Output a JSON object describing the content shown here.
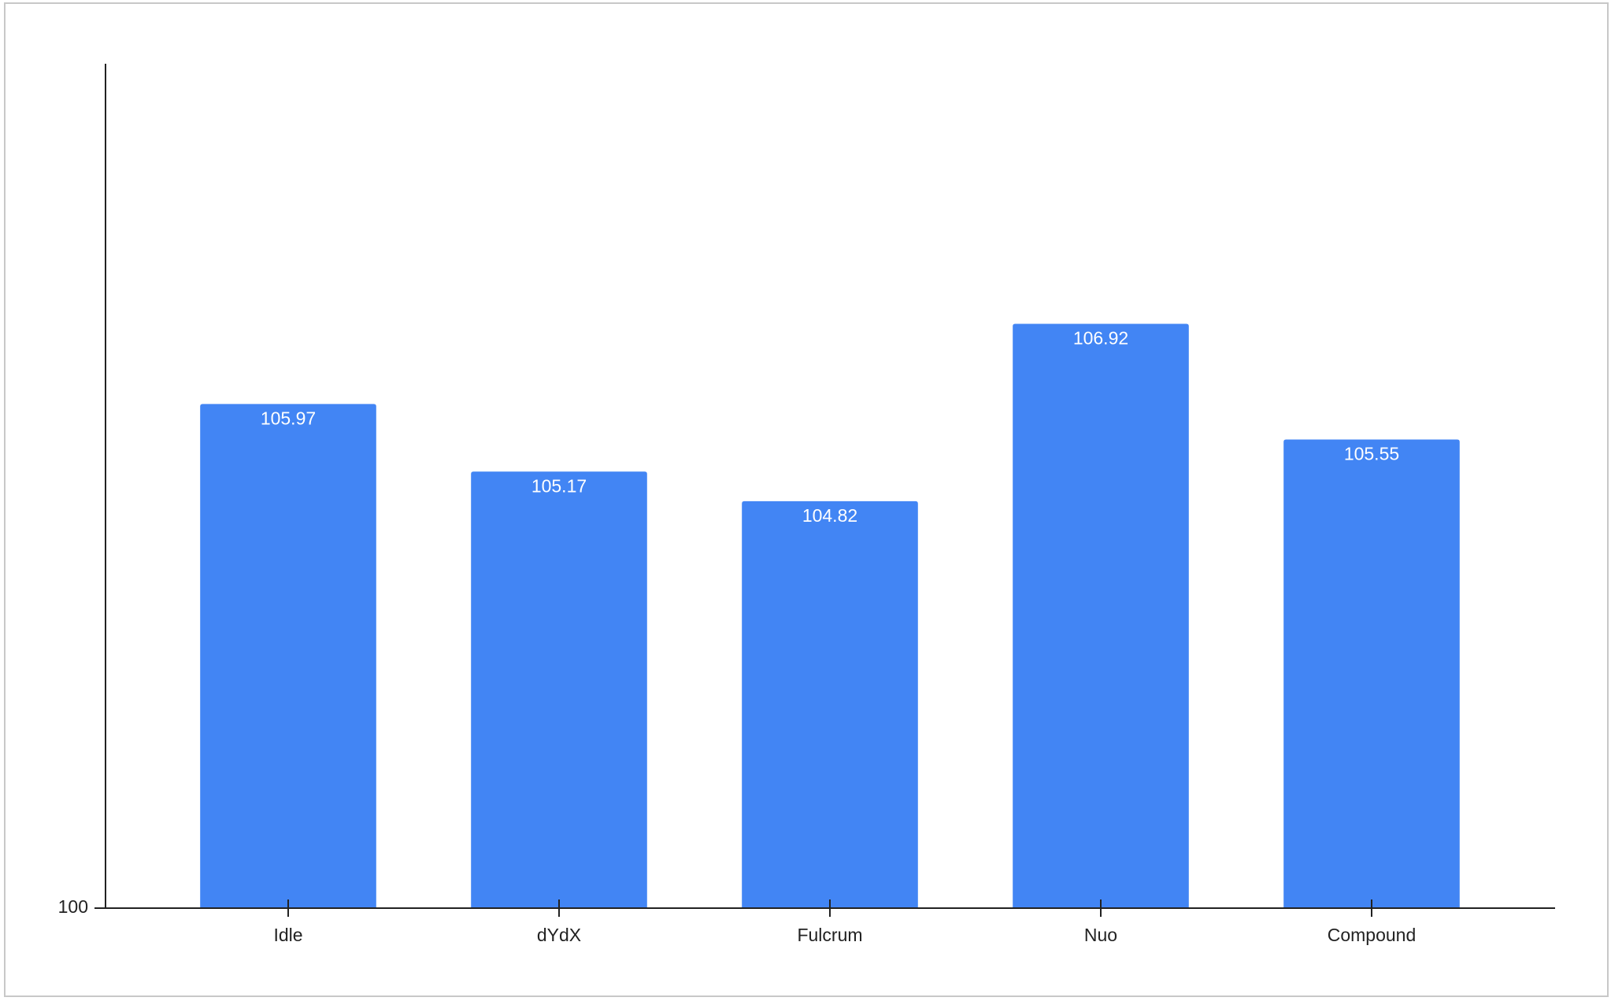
{
  "chart_data": {
    "type": "bar",
    "categories": [
      "Idle",
      "dYdX",
      "Fulcrum",
      "Nuo",
      "Compound"
    ],
    "values": [
      105.97,
      105.17,
      104.82,
      106.92,
      105.55
    ],
    "color": "#4285f4",
    "ylim": [
      100,
      110
    ],
    "yticks": [
      100
    ],
    "grid": false
  }
}
